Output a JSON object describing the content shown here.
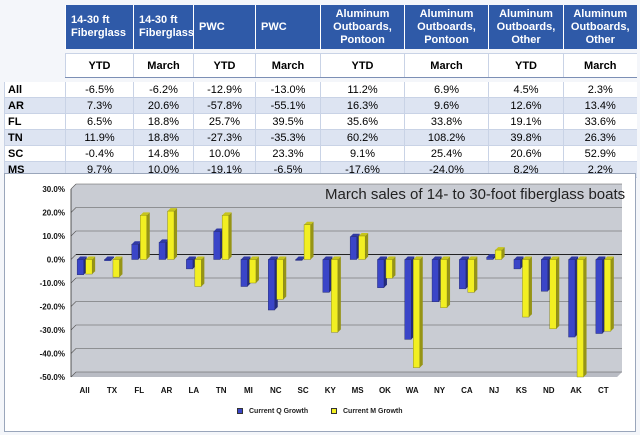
{
  "table": {
    "headers": [
      "14-30 ft Fiberglass",
      "14-30 ft Fiberglass",
      "PWC",
      "PWC",
      "Aluminum Outboards, Pontoon",
      "Aluminum Outboards, Pontoon",
      "Aluminum Outboards, Other",
      "Aluminum Outboards, Other"
    ],
    "periods": [
      "YTD",
      "March",
      "YTD",
      "March",
      "YTD",
      "March",
      "YTD",
      "March"
    ],
    "rows": [
      {
        "label": "All",
        "values": [
          "-6.5%",
          "-6.2%",
          "-12.9%",
          "-13.0%",
          "11.2%",
          "6.9%",
          "4.5%",
          "2.3%"
        ]
      },
      {
        "label": "AR",
        "values": [
          "7.3%",
          "20.6%",
          "-57.8%",
          "-55.1%",
          "16.3%",
          "9.6%",
          "12.6%",
          "13.4%"
        ]
      },
      {
        "label": "FL",
        "values": [
          "6.5%",
          "18.8%",
          "25.7%",
          "39.5%",
          "35.6%",
          "33.8%",
          "19.1%",
          "33.6%"
        ]
      },
      {
        "label": "TN",
        "values": [
          "11.9%",
          "18.8%",
          "-27.3%",
          "-35.3%",
          "60.2%",
          "108.2%",
          "39.8%",
          "26.3%"
        ]
      },
      {
        "label": "SC",
        "values": [
          "-0.4%",
          "14.8%",
          "10.0%",
          "23.3%",
          "9.1%",
          "25.4%",
          "20.6%",
          "52.9%"
        ]
      },
      {
        "label": "MS",
        "values": [
          "9.7%",
          "10.0%",
          "-19.1%",
          "-6.5%",
          "-17.6%",
          "-24.0%",
          "8.2%",
          "2.2%"
        ]
      }
    ]
  },
  "chart_data": {
    "type": "bar",
    "title": "March sales of 14- to 30-foot fiberglass boats",
    "categories": [
      "All",
      "TX",
      "FL",
      "AR",
      "LA",
      "TN",
      "MI",
      "NC",
      "SC",
      "KY",
      "MS",
      "OK",
      "WA",
      "NY",
      "CA",
      "NJ",
      "KS",
      "ND",
      "AK",
      "CT"
    ],
    "series": [
      {
        "name": "Current Q Growth",
        "color": "#3a45c8",
        "values": [
          -6.5,
          -0.5,
          6.5,
          7.3,
          -4.0,
          11.9,
          -11.5,
          -21.5,
          -0.4,
          -14.0,
          9.7,
          -12.0,
          -34.0,
          -18.0,
          -12.5,
          1.0,
          -4.0,
          -13.5,
          -33.0,
          -31.5
        ]
      },
      {
        "name": "Current M Growth",
        "color": "#f2ef22",
        "values": [
          -6.2,
          -7.5,
          18.8,
          20.6,
          -11.5,
          18.8,
          -10.0,
          -17.0,
          14.8,
          -31.0,
          10.0,
          -8.0,
          -46.0,
          -20.5,
          -14.0,
          4.0,
          -24.5,
          -29.5,
          -50.0,
          -30.5
        ]
      }
    ],
    "yticks": [
      "30.0%",
      "20.0%",
      "10.0%",
      "0.0%",
      "-10.0%",
      "-20.0%",
      "-30.0%",
      "-40.0%",
      "-50.0%"
    ],
    "ylim": [
      -50,
      30
    ],
    "grid": true,
    "legend": "bottom-center"
  }
}
